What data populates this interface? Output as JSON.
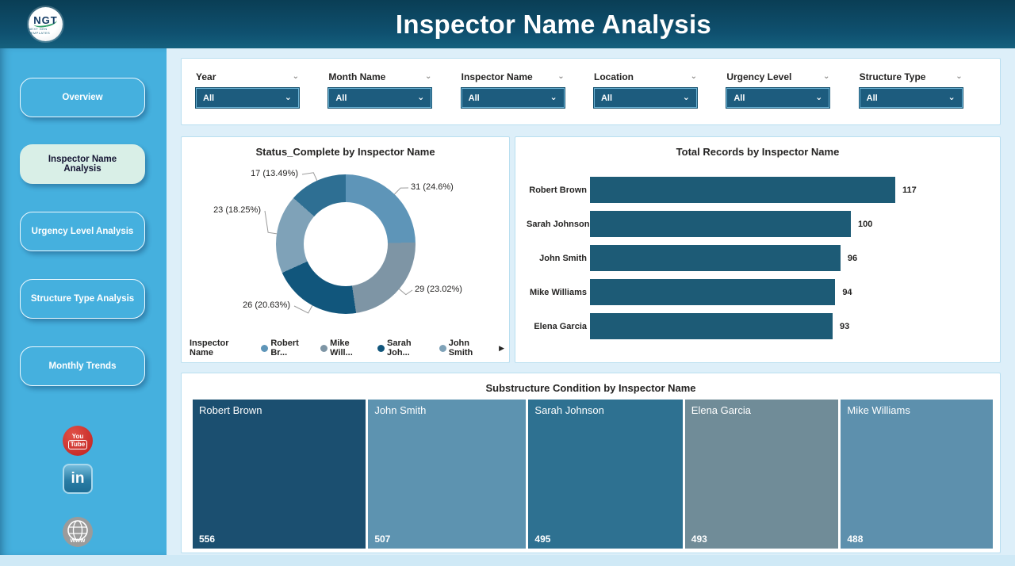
{
  "header": {
    "title": "Inspector Name Analysis",
    "logo": {
      "text": "NGT",
      "tagline": "NEXT GEN TEMPLATES"
    }
  },
  "sidebar": {
    "items": [
      {
        "label": "Overview",
        "active": false
      },
      {
        "label": "Inspector Name Analysis",
        "active": true
      },
      {
        "label": "Urgency Level Analysis",
        "active": false
      },
      {
        "label": "Structure Type Analysis",
        "active": false
      },
      {
        "label": "Monthly Trends",
        "active": false
      }
    ],
    "social": {
      "youtube": [
        "You",
        "Tube"
      ],
      "linkedin": "in",
      "website": "www"
    }
  },
  "filters": {
    "items": [
      {
        "label": "Year",
        "value": "All"
      },
      {
        "label": "Month Name",
        "value": "All"
      },
      {
        "label": "Inspector Name",
        "value": "All"
      },
      {
        "label": "Location",
        "value": "All"
      },
      {
        "label": "Urgency Level",
        "value": "All"
      },
      {
        "label": "Structure Type",
        "value": "All"
      }
    ]
  },
  "chart_data": [
    {
      "type": "donut",
      "title": "Status_Complete by Inspector Name",
      "legend_title": "Inspector Name",
      "legend_overflow_arrow": "▶",
      "legend_visible_items": 4,
      "slices": [
        {
          "name": "Robert Brown",
          "legend_label": "Robert Br...",
          "value": 31,
          "label": "31 (24.6%)",
          "color": "#5e95b8"
        },
        {
          "name": "Mike Williams",
          "legend_label": "Mike Will...",
          "value": 29,
          "label": "29 (23.02%)",
          "color": "#7e95a5"
        },
        {
          "name": "Sarah Johnson",
          "legend_label": "Sarah Joh...",
          "value": 26,
          "label": "26 (20.63%)",
          "color": "#11567c"
        },
        {
          "name": "John Smith",
          "legend_label": "John Smith",
          "value": 23,
          "label": "23 (18.25%)",
          "color": "#7fa2b8"
        },
        {
          "name": "Elena Garcia",
          "legend_label": "Elena Garcia",
          "value": 17,
          "label": "17 (13.49%)",
          "color": "#2e6f93"
        }
      ]
    },
    {
      "type": "bar",
      "orientation": "horizontal",
      "title": "Total Records by Inspector Name",
      "categories": [
        "Robert Brown",
        "Sarah Johnson",
        "John Smith",
        "Mike Williams",
        "Elena Garcia"
      ],
      "values": [
        117,
        100,
        96,
        94,
        93
      ],
      "bar_color": "#1d5b76",
      "xlim": [
        0,
        117
      ],
      "value_labels": true
    },
    {
      "type": "treemap",
      "title": "Substructure Condition by Inspector Name",
      "tiles": [
        {
          "name": "Robert Brown",
          "value": 556,
          "color": "#1b4f70"
        },
        {
          "name": "John Smith",
          "value": 507,
          "color": "#5d93b0"
        },
        {
          "name": "Sarah Johnson",
          "value": 495,
          "color": "#2e7191"
        },
        {
          "name": "Elena Garcia",
          "value": 493,
          "color": "#708c98"
        },
        {
          "name": "Mike Williams",
          "value": 488,
          "color": "#5d90ad"
        }
      ]
    }
  ],
  "colors": {
    "header_gradient_top": "#0a3e55",
    "header_gradient_bottom": "#15617e",
    "sidebar": "#45b0de",
    "active_nav_bg": "#d9efe7",
    "dropdown_bg": "#1d5c7e",
    "card_border": "#b9dff0",
    "page_bg": "#cfe9f6"
  }
}
